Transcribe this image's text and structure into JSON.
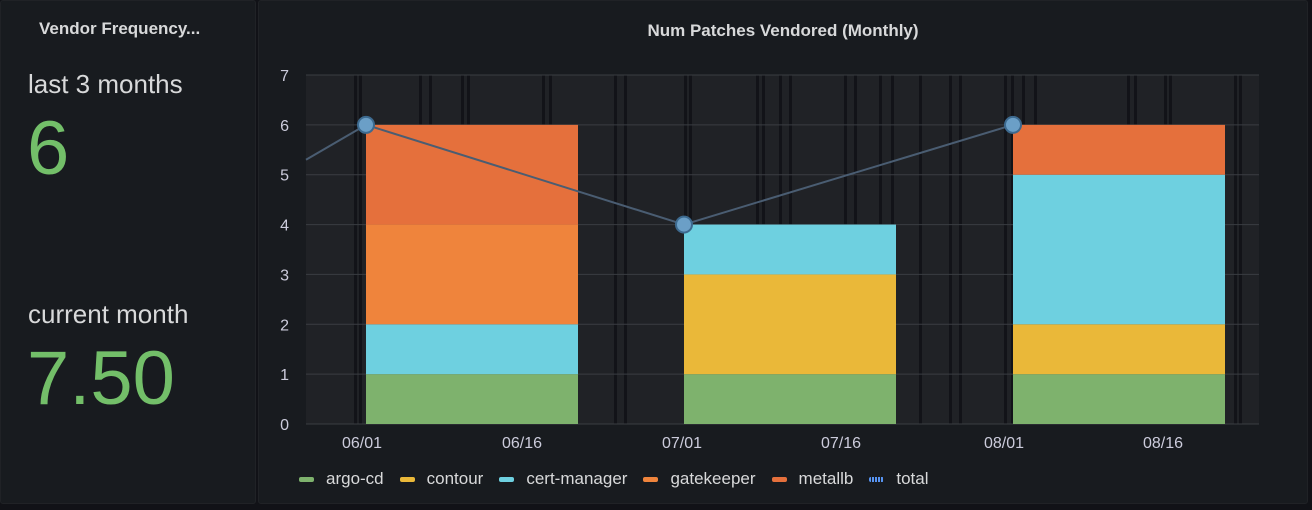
{
  "stat_panel": {
    "title": "Vendor Frequency...",
    "items": [
      {
        "label": "last 3 months",
        "value": "6"
      },
      {
        "label": "current month",
        "value": "7.50"
      }
    ],
    "value_color": "#73bf69"
  },
  "chart_panel": {
    "title": "Num Patches Vendored (Monthly)"
  },
  "chart_data": {
    "type": "bar",
    "stacked": true,
    "categories": [
      "06/01",
      "07/01",
      "08/01"
    ],
    "x_tick_labels": [
      "06/01",
      "06/16",
      "07/01",
      "07/16",
      "08/01",
      "08/16"
    ],
    "ylim": [
      0,
      7
    ],
    "y_ticks": [
      0,
      1,
      2,
      3,
      4,
      5,
      6,
      7
    ],
    "grid": true,
    "legend_position": "bottom-left",
    "series": [
      {
        "name": "argo-cd",
        "color": "#7eb26d",
        "values": [
          1,
          1,
          1
        ]
      },
      {
        "name": "contour",
        "color": "#eab839",
        "values": [
          0,
          2,
          1
        ]
      },
      {
        "name": "cert-manager",
        "color": "#6ed0e0",
        "values": [
          1,
          1,
          3
        ]
      },
      {
        "name": "gatekeeper",
        "color": "#ef843c",
        "values": [
          2,
          0,
          0
        ]
      },
      {
        "name": "metallb",
        "color": "#e5703c",
        "values": [
          2,
          0,
          1
        ]
      }
    ],
    "line_series": {
      "name": "total",
      "color": "#5794f2",
      "values": [
        6,
        4,
        6
      ]
    }
  }
}
